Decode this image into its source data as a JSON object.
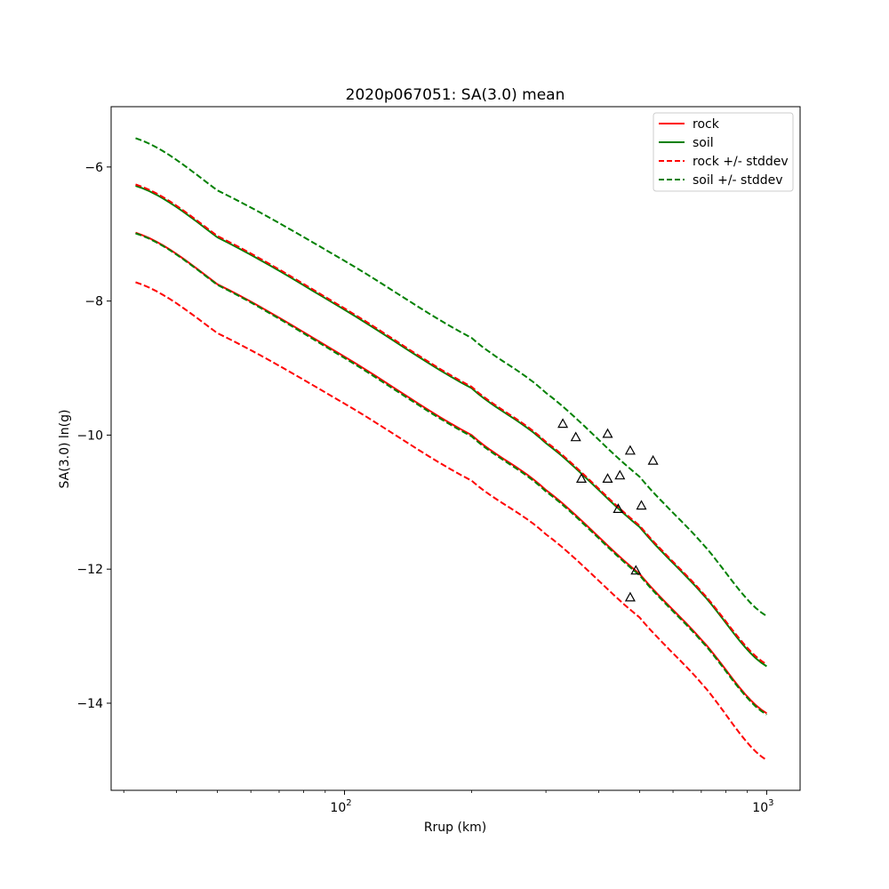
{
  "chart_data": {
    "type": "line",
    "title": "2020p067051: SA(3.0) mean",
    "xlabel": "Rrup (km)",
    "ylabel": "SA(3.0) ln(g)",
    "xscale": "log",
    "xlim": [
      28,
      1200
    ],
    "ylim": [
      -15.3,
      -5.1
    ],
    "x_ticks": [
      {
        "value": 100,
        "base": "10",
        "exp": "2"
      },
      {
        "value": 1000,
        "base": "10",
        "exp": "3"
      }
    ],
    "y_ticks": [
      {
        "value": -6,
        "label": "−6"
      },
      {
        "value": -8,
        "label": "−8"
      },
      {
        "value": -10,
        "label": "−10"
      },
      {
        "value": -12,
        "label": "−12"
      },
      {
        "value": -14,
        "label": "−14"
      }
    ],
    "grid": false,
    "legend": {
      "location": "top-right",
      "entries": [
        {
          "label": "rock",
          "color": "#ff0000",
          "dashed": false
        },
        {
          "label": "soil",
          "color": "#008000",
          "dashed": false
        },
        {
          "label": "rock +/- stddev",
          "color": "#ff0000",
          "dashed": true
        },
        {
          "label": "soil +/- stddev",
          "color": "#008000",
          "dashed": true
        }
      ]
    },
    "series": [
      {
        "style": "rock-mean",
        "color": "#ff0000",
        "dashed": false,
        "x": [
          32,
          50,
          100,
          200,
          300,
          500,
          700,
          1000
        ],
        "y": [
          -6.98,
          -7.75,
          -8.83,
          -10.0,
          -10.82,
          -12.07,
          -13.05,
          -14.15
        ]
      },
      {
        "style": "soil-mean",
        "color": "#008000",
        "dashed": false,
        "x": [
          32,
          50,
          100,
          200,
          300,
          500,
          700,
          1000
        ],
        "y": [
          -6.28,
          -7.05,
          -8.13,
          -9.3,
          -10.12,
          -11.37,
          -12.35,
          -13.45
        ]
      },
      {
        "style": "rock-plus",
        "color": "#ff0000",
        "dashed": true,
        "x": [
          32,
          50,
          100,
          200,
          300,
          500,
          700,
          1000
        ],
        "y": [
          -6.26,
          -7.03,
          -8.11,
          -9.28,
          -10.1,
          -11.35,
          -12.33,
          -13.42
        ]
      },
      {
        "style": "rock-minus",
        "color": "#ff0000",
        "dashed": true,
        "x": [
          32,
          50,
          100,
          200,
          300,
          500,
          700,
          1000
        ],
        "y": [
          -7.72,
          -8.48,
          -9.53,
          -10.68,
          -11.48,
          -12.72,
          -13.7,
          -14.85
        ]
      },
      {
        "style": "soil-plus",
        "color": "#008000",
        "dashed": true,
        "x": [
          32,
          50,
          100,
          200,
          300,
          500,
          700,
          1000
        ],
        "y": [
          -5.57,
          -6.35,
          -7.4,
          -8.55,
          -9.37,
          -10.62,
          -11.6,
          -12.7
        ]
      },
      {
        "style": "soil-minus",
        "color": "#008000",
        "dashed": true,
        "x": [
          32,
          50,
          100,
          200,
          300,
          500,
          700,
          1000
        ],
        "y": [
          -6.99,
          -7.76,
          -8.85,
          -10.02,
          -10.84,
          -12.09,
          -13.07,
          -14.17
        ]
      }
    ],
    "observations": {
      "marker": "triangle",
      "color": "#000000",
      "points": [
        {
          "x": 329,
          "y": -9.83
        },
        {
          "x": 353,
          "y": -10.03
        },
        {
          "x": 364,
          "y": -10.65
        },
        {
          "x": 420,
          "y": -9.98
        },
        {
          "x": 420,
          "y": -10.65
        },
        {
          "x": 445,
          "y": -11.1
        },
        {
          "x": 449,
          "y": -10.6
        },
        {
          "x": 475,
          "y": -10.23
        },
        {
          "x": 475,
          "y": -12.42
        },
        {
          "x": 490,
          "y": -12.02
        },
        {
          "x": 505,
          "y": -11.05
        },
        {
          "x": 538,
          "y": -10.38
        }
      ]
    }
  }
}
